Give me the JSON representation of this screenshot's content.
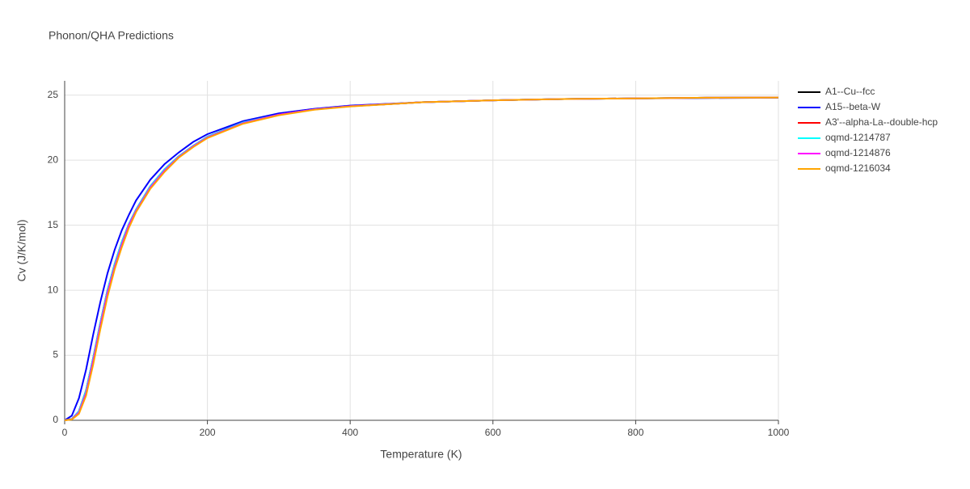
{
  "chart_data": {
    "type": "line",
    "title": "Phonon/QHA Predictions",
    "x_label": "Temperature (K)",
    "y_label": "Cv (J/K/mol)",
    "x": [
      0,
      10,
      20,
      30,
      40,
      50,
      60,
      70,
      80,
      90,
      100,
      120,
      140,
      160,
      180,
      200,
      250,
      300,
      350,
      400,
      500,
      600,
      700,
      800,
      900,
      1000
    ],
    "series": [
      {
        "name": "A1--Cu--fcc",
        "color": "#000000",
        "values": [
          0,
          0.1,
          0.7,
          2.3,
          4.8,
          7.5,
          10.0,
          12.0,
          13.7,
          15.1,
          16.2,
          18.0,
          19.3,
          20.3,
          21.1,
          21.8,
          22.9,
          23.5,
          23.9,
          24.15,
          24.45,
          24.6,
          24.7,
          24.75,
          24.8,
          24.82
        ]
      },
      {
        "name": "A15--beta-W",
        "color": "#0000ff",
        "values": [
          0,
          0.35,
          1.7,
          3.9,
          6.6,
          9.1,
          11.3,
          13.1,
          14.6,
          15.8,
          16.9,
          18.5,
          19.7,
          20.6,
          21.4,
          22.0,
          23.0,
          23.6,
          23.95,
          24.2,
          24.45,
          24.6,
          24.7,
          24.75,
          24.78,
          24.8
        ]
      },
      {
        "name": "A3'--alpha-La--double-hcp",
        "color": "#ff0000",
        "values": [
          0,
          0.1,
          0.7,
          2.3,
          4.8,
          7.5,
          10.0,
          12.0,
          13.7,
          15.1,
          16.2,
          18.0,
          19.3,
          20.3,
          21.1,
          21.8,
          22.9,
          23.5,
          23.9,
          24.15,
          24.45,
          24.6,
          24.7,
          24.75,
          24.8,
          24.82
        ]
      },
      {
        "name": "oqmd-1214787",
        "color": "#00ffff",
        "values": [
          0,
          0.1,
          0.7,
          2.3,
          4.8,
          7.5,
          10.0,
          12.0,
          13.7,
          15.1,
          16.2,
          18.0,
          19.3,
          20.3,
          21.1,
          21.8,
          22.9,
          23.5,
          23.9,
          24.15,
          24.45,
          24.6,
          24.7,
          24.75,
          24.8,
          24.82
        ]
      },
      {
        "name": "oqmd-1214876",
        "color": "#ff00ff",
        "values": [
          0,
          0.08,
          0.6,
          2.1,
          4.6,
          7.3,
          9.8,
          11.8,
          13.5,
          15.0,
          16.1,
          17.9,
          19.2,
          20.25,
          21.05,
          21.75,
          22.85,
          23.5,
          23.9,
          24.15,
          24.45,
          24.6,
          24.7,
          24.75,
          24.8,
          24.82
        ]
      },
      {
        "name": "oqmd-1216034",
        "color": "#ffa500",
        "values": [
          0,
          0.06,
          0.5,
          1.9,
          4.3,
          7.0,
          9.5,
          11.6,
          13.3,
          14.8,
          16.0,
          17.8,
          19.1,
          20.2,
          21.0,
          21.7,
          22.8,
          23.45,
          23.88,
          24.13,
          24.45,
          24.6,
          24.7,
          24.75,
          24.8,
          24.82
        ]
      }
    ],
    "xlim": [
      0,
      1000
    ],
    "xticks": [
      0,
      200,
      400,
      600,
      800,
      1000
    ],
    "ylim": [
      0,
      26.1
    ],
    "yticks": [
      0,
      5,
      10,
      15,
      20,
      25
    ],
    "grid": true
  }
}
